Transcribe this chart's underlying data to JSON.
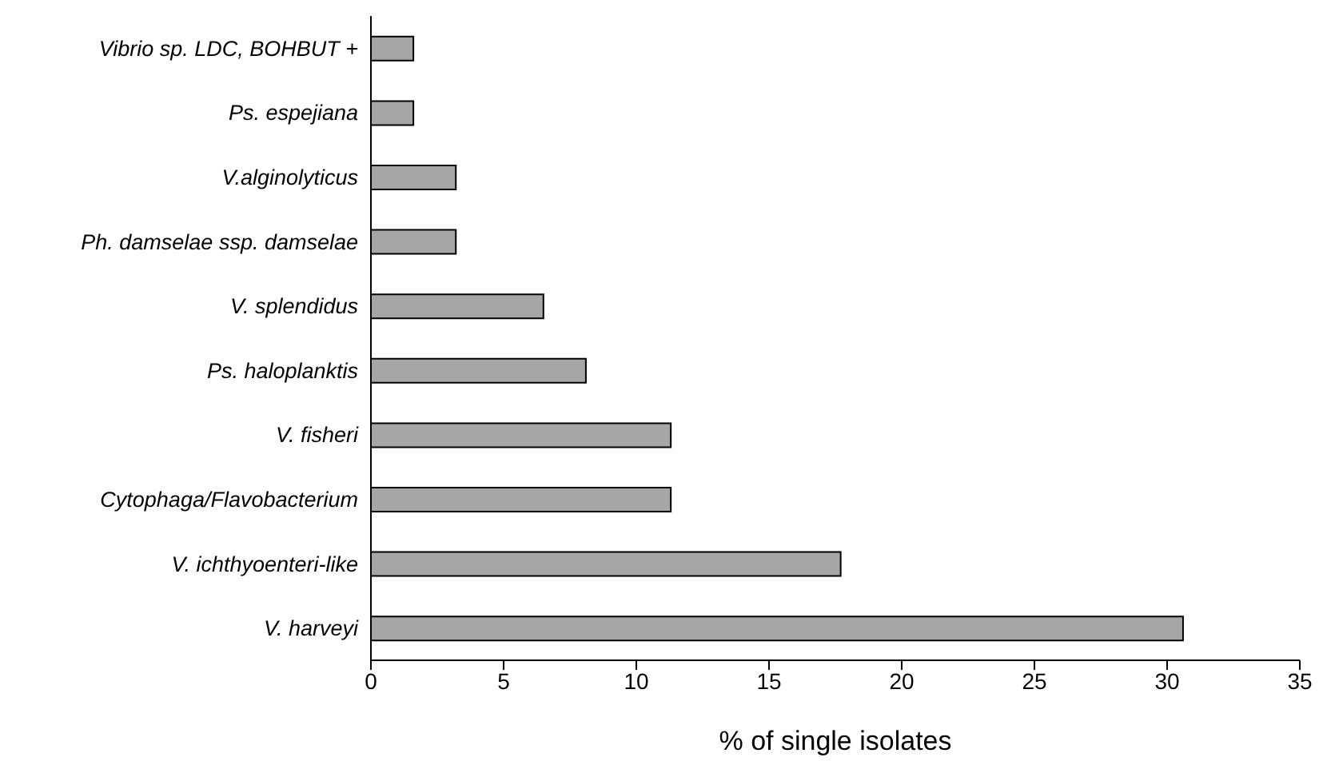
{
  "chart_data": {
    "type": "bar",
    "orientation": "horizontal",
    "xlabel": "% of single isolates",
    "categories": [
      "Vibrio sp. LDC, BOHBUT +",
      "Ps. espejiana",
      "V.alginolyticus",
      "Ph. damselae ssp. damselae",
      "V. splendidus",
      "Ps. haloplanktis",
      "V. fisheri",
      "Cytophaga/Flavobacterium",
      "V. ichthyoenteri-like",
      "V. harveyi"
    ],
    "values": [
      1.6,
      1.6,
      3.2,
      3.2,
      6.5,
      8.1,
      11.3,
      11.3,
      17.7,
      30.6
    ],
    "color": "#a6a6a6",
    "xlim": [
      0,
      35
    ],
    "xticks": [
      0,
      5,
      10,
      15,
      20,
      25,
      30,
      35
    ],
    "grid": false,
    "legend": false
  }
}
